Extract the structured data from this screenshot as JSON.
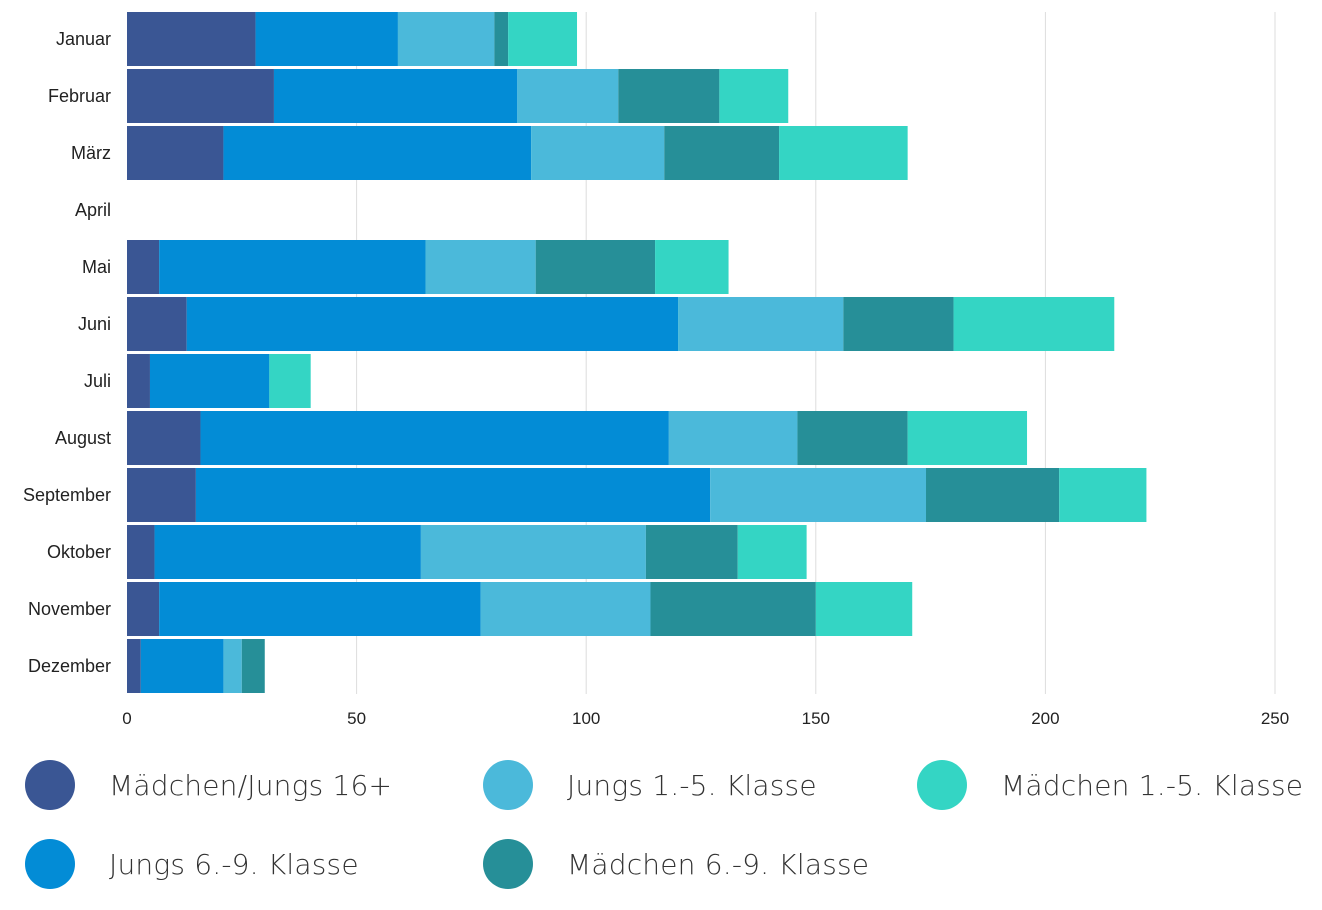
{
  "chart_data": {
    "type": "bar",
    "orientation": "horizontal",
    "stacked": true,
    "categories": [
      "Januar",
      "Februar",
      "März",
      "April",
      "Mai",
      "Juni",
      "Juli",
      "August",
      "September",
      "Oktober",
      "November",
      "Dezember"
    ],
    "series": [
      {
        "name": "Mädchen/Jungs 16+",
        "color": "#3a5694",
        "values": [
          28,
          32,
          21,
          0,
          7,
          13,
          5,
          16,
          15,
          6,
          7,
          3
        ]
      },
      {
        "name": "Jungs 6.-9. Klasse",
        "color": "#038cd6",
        "values": [
          31,
          53,
          67,
          0,
          58,
          107,
          26,
          102,
          112,
          58,
          70,
          18
        ]
      },
      {
        "name": "Jungs 1.-5. Klasse",
        "color": "#4bb9da",
        "values": [
          21,
          22,
          29,
          0,
          24,
          36,
          0,
          28,
          47,
          49,
          37,
          4
        ]
      },
      {
        "name": "Mädchen 6.-9. Klasse",
        "color": "#268f98",
        "values": [
          3,
          22,
          25,
          0,
          26,
          24,
          0,
          24,
          29,
          20,
          36,
          5
        ]
      },
      {
        "name": "Mädchen 1.-5. Klasse",
        "color": "#34d5c4",
        "values": [
          15,
          15,
          28,
          0,
          16,
          35,
          9,
          26,
          19,
          15,
          21,
          0
        ]
      }
    ],
    "x_ticks": [
      "0",
      "50",
      "100",
      "150",
      "200",
      "250"
    ],
    "xlim": [
      0,
      250
    ],
    "grid": true,
    "legend_position": "bottom"
  },
  "legend": [
    {
      "label": "Mädchen/Jungs 16+",
      "color": "#3a5694"
    },
    {
      "label": "Jungs 1.-5. Klasse",
      "color": "#4bb9da"
    },
    {
      "label": "Mädchen 1.-5. Klasse",
      "color": "#34d5c4"
    },
    {
      "label": "Jungs 6.-9. Klasse",
      "color": "#038cd6"
    },
    {
      "label": "Mädchen 6.-9. Klasse",
      "color": "#268f98"
    }
  ]
}
